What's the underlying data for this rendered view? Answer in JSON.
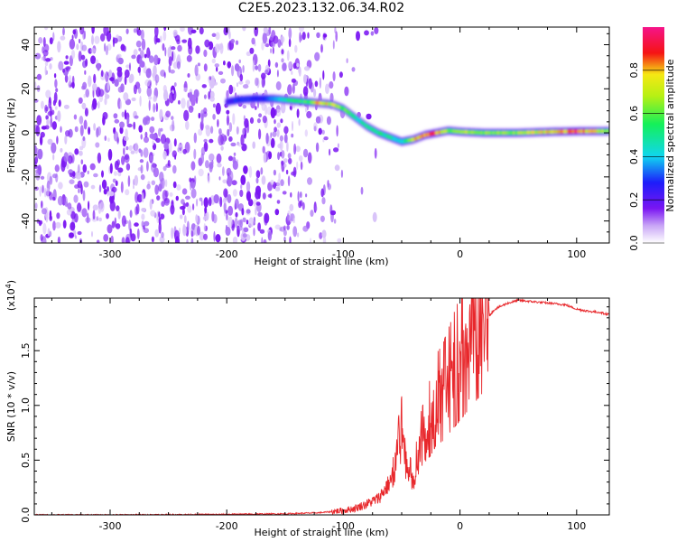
{
  "title": "C2E5.2023.132.06.34.R02",
  "colors": {
    "snr_line": "#e8282c",
    "speckle": "#7a16f2",
    "axis": "#000000"
  },
  "chart_data": [
    {
      "type": "heatmap",
      "name": "spectrogram",
      "xlabel": "Height of straight line (km)",
      "ylabel": "Frequency (Hz)",
      "xlim": [
        -365,
        128
      ],
      "ylim": [
        -50,
        48
      ],
      "xticks": [
        -300,
        -200,
        -100,
        0,
        100
      ],
      "yticks": [
        -40,
        -20,
        0,
        20,
        40
      ],
      "colorbar": {
        "label": "Normalized spectral amplitude",
        "range": [
          0,
          1
        ],
        "ticks": [
          0.0,
          0.2,
          0.4,
          0.6,
          0.8
        ],
        "colormap": "rainbow (white-violet-blue-cyan-green-yellow-red-magenta)"
      },
      "noise_region_x": [
        -365,
        -105
      ],
      "ridge": {
        "x": [
          -200,
          -190,
          -175,
          -160,
          -150,
          -140,
          -130,
          -120,
          -110,
          -100,
          -90,
          -80,
          -70,
          -60,
          -50,
          -40,
          -30,
          -20,
          -10,
          0,
          20,
          50,
          80,
          100,
          128
        ],
        "freq": [
          14,
          15,
          15.5,
          15.5,
          15,
          14.5,
          14,
          13.5,
          13,
          11,
          7,
          3,
          0,
          -2,
          -4,
          -3,
          -1,
          0,
          1,
          0.5,
          0,
          0,
          0.5,
          0.7,
          0.8
        ],
        "amplitude": [
          0.2,
          0.3,
          0.25,
          0.35,
          0.5,
          0.5,
          0.55,
          0.8,
          0.7,
          0.6,
          0.45,
          0.5,
          0.5,
          0.5,
          0.4,
          0.7,
          0.85,
          0.85,
          0.6,
          0.7,
          0.6,
          0.65,
          0.75,
          0.9,
          0.6
        ]
      }
    },
    {
      "type": "line",
      "name": "snr",
      "xlabel": "Height of straight line (km)",
      "ylabel": "SNR (10 * v/v)",
      "yscale_label": "(x10",
      "yscale_exp": "4",
      "yscale_close": ")",
      "xlim": [
        -365,
        128
      ],
      "ylim": [
        0.0,
        1.98
      ],
      "xticks": [
        -300,
        -200,
        -100,
        0,
        100
      ],
      "yticks": [
        0.0,
        0.5,
        1.0,
        1.5
      ],
      "ytick_labels": [
        "0.0",
        "0.5",
        "1.0",
        "1.5"
      ],
      "series": [
        {
          "x": [
            -365,
            -300,
            -200,
            -150,
            -120,
            -100,
            -90,
            -80,
            -70,
            -60,
            -55,
            -50,
            -45,
            -40,
            -35,
            -30,
            -25,
            -20,
            -15,
            -10,
            -5,
            0,
            5,
            10,
            15,
            20,
            25,
            30,
            40,
            50,
            60,
            70,
            80,
            90,
            100,
            110,
            120,
            128
          ],
          "y": [
            0.0,
            0.0,
            0.005,
            0.01,
            0.02,
            0.04,
            0.06,
            0.1,
            0.15,
            0.3,
            0.5,
            0.75,
            0.4,
            0.3,
            0.6,
            0.75,
            0.85,
            1.0,
            1.05,
            1.15,
            1.25,
            1.35,
            1.45,
            1.55,
            1.65,
            1.75,
            1.82,
            1.88,
            1.93,
            1.96,
            1.95,
            1.94,
            1.93,
            1.92,
            1.88,
            1.86,
            1.85,
            1.83
          ]
        }
      ]
    }
  ]
}
